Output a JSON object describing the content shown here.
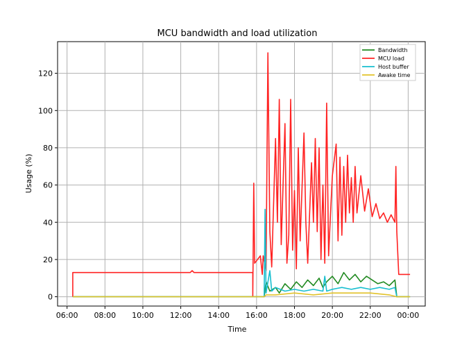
{
  "chart_data": {
    "type": "line",
    "title": "MCU bandwidth and load utilization",
    "xlabel": "Time",
    "ylabel": "Usage (%)",
    "x_tick_labels": [
      "06:00",
      "08:00",
      "10:00",
      "12:00",
      "14:00",
      "16:00",
      "18:00",
      "20:00",
      "22:00",
      "00:00"
    ],
    "x_tick_hours": [
      6,
      8,
      10,
      12,
      14,
      16,
      18,
      20,
      22,
      24
    ],
    "y_ticks": [
      0,
      20,
      40,
      60,
      80,
      100,
      120
    ],
    "xlim_hours": [
      5.5,
      24.9
    ],
    "ylim": [
      -5,
      137
    ],
    "grid": true,
    "legend_position": "top-right",
    "series": [
      {
        "name": "Bandwidth",
        "color": "#218a21",
        "points": [
          [
            6.3,
            0
          ],
          [
            16.4,
            0
          ],
          [
            16.5,
            8
          ],
          [
            16.7,
            3
          ],
          [
            17.0,
            5
          ],
          [
            17.2,
            2
          ],
          [
            17.5,
            7
          ],
          [
            17.8,
            4
          ],
          [
            18.1,
            8
          ],
          [
            18.4,
            5
          ],
          [
            18.7,
            9
          ],
          [
            19.0,
            6
          ],
          [
            19.3,
            10
          ],
          [
            19.5,
            5
          ],
          [
            19.7,
            8
          ],
          [
            20.0,
            11
          ],
          [
            20.3,
            7
          ],
          [
            20.6,
            13
          ],
          [
            20.9,
            9
          ],
          [
            21.2,
            12
          ],
          [
            21.5,
            8
          ],
          [
            21.8,
            11
          ],
          [
            22.1,
            9
          ],
          [
            22.4,
            7
          ],
          [
            22.7,
            8
          ],
          [
            23.0,
            6
          ],
          [
            23.3,
            9
          ],
          [
            23.4,
            0
          ],
          [
            24.1,
            0
          ]
        ]
      },
      {
        "name": "MCU load",
        "color": "#ff2222",
        "points": [
          [
            6.3,
            0
          ],
          [
            6.3,
            13
          ],
          [
            12.5,
            13
          ],
          [
            12.6,
            14
          ],
          [
            12.7,
            13
          ],
          [
            15.8,
            13
          ],
          [
            15.8,
            0
          ],
          [
            15.85,
            61
          ],
          [
            15.9,
            18
          ],
          [
            16.2,
            22
          ],
          [
            16.3,
            12
          ],
          [
            16.35,
            22
          ],
          [
            16.5,
            14
          ],
          [
            16.6,
            131
          ],
          [
            16.7,
            35
          ],
          [
            16.8,
            16
          ],
          [
            17.0,
            85
          ],
          [
            17.1,
            40
          ],
          [
            17.2,
            106
          ],
          [
            17.3,
            28
          ],
          [
            17.5,
            93
          ],
          [
            17.6,
            18
          ],
          [
            17.7,
            33
          ],
          [
            17.8,
            106
          ],
          [
            17.9,
            25
          ],
          [
            18.0,
            57
          ],
          [
            18.1,
            15
          ],
          [
            18.2,
            80
          ],
          [
            18.3,
            30
          ],
          [
            18.5,
            88
          ],
          [
            18.6,
            40
          ],
          [
            18.7,
            18
          ],
          [
            18.9,
            72
          ],
          [
            19.0,
            40
          ],
          [
            19.1,
            85
          ],
          [
            19.2,
            35
          ],
          [
            19.3,
            80
          ],
          [
            19.4,
            20
          ],
          [
            19.5,
            60
          ],
          [
            19.6,
            18
          ],
          [
            19.7,
            104
          ],
          [
            19.8,
            22
          ],
          [
            19.9,
            44
          ],
          [
            20.0,
            65
          ],
          [
            20.2,
            82
          ],
          [
            20.3,
            30
          ],
          [
            20.4,
            75
          ],
          [
            20.5,
            33
          ],
          [
            20.6,
            70
          ],
          [
            20.7,
            40
          ],
          [
            20.8,
            76
          ],
          [
            20.9,
            45
          ],
          [
            21.0,
            64
          ],
          [
            21.1,
            40
          ],
          [
            21.2,
            70
          ],
          [
            21.3,
            45
          ],
          [
            21.5,
            65
          ],
          [
            21.7,
            46
          ],
          [
            21.9,
            58
          ],
          [
            22.1,
            43
          ],
          [
            22.3,
            50
          ],
          [
            22.5,
            42
          ],
          [
            22.7,
            45
          ],
          [
            22.9,
            40
          ],
          [
            23.1,
            44
          ],
          [
            23.3,
            40
          ],
          [
            23.35,
            70
          ],
          [
            23.4,
            35
          ],
          [
            23.5,
            12
          ],
          [
            24.1,
            12
          ]
        ]
      },
      {
        "name": "Host buffer",
        "color": "#17becf",
        "points": [
          [
            6.3,
            0
          ],
          [
            16.4,
            0
          ],
          [
            16.45,
            47
          ],
          [
            16.5,
            2
          ],
          [
            16.7,
            14
          ],
          [
            16.8,
            3
          ],
          [
            17.0,
            5
          ],
          [
            17.5,
            3
          ],
          [
            18.0,
            4
          ],
          [
            18.5,
            3
          ],
          [
            19.0,
            4
          ],
          [
            19.5,
            3
          ],
          [
            19.6,
            11
          ],
          [
            19.7,
            3
          ],
          [
            20.0,
            4
          ],
          [
            20.5,
            5
          ],
          [
            21.0,
            4
          ],
          [
            21.5,
            5
          ],
          [
            22.0,
            4
          ],
          [
            22.5,
            5
          ],
          [
            23.0,
            4
          ],
          [
            23.3,
            5
          ],
          [
            23.4,
            0
          ],
          [
            24.1,
            0
          ]
        ]
      },
      {
        "name": "Awake time",
        "color": "#e2c22a",
        "points": [
          [
            6.3,
            0
          ],
          [
            16.4,
            0
          ],
          [
            16.5,
            1
          ],
          [
            17.0,
            1
          ],
          [
            18.0,
            2
          ],
          [
            19.0,
            1
          ],
          [
            20.0,
            2
          ],
          [
            21.0,
            2
          ],
          [
            22.0,
            2
          ],
          [
            23.0,
            1
          ],
          [
            23.4,
            0
          ],
          [
            24.1,
            0
          ]
        ]
      }
    ]
  }
}
